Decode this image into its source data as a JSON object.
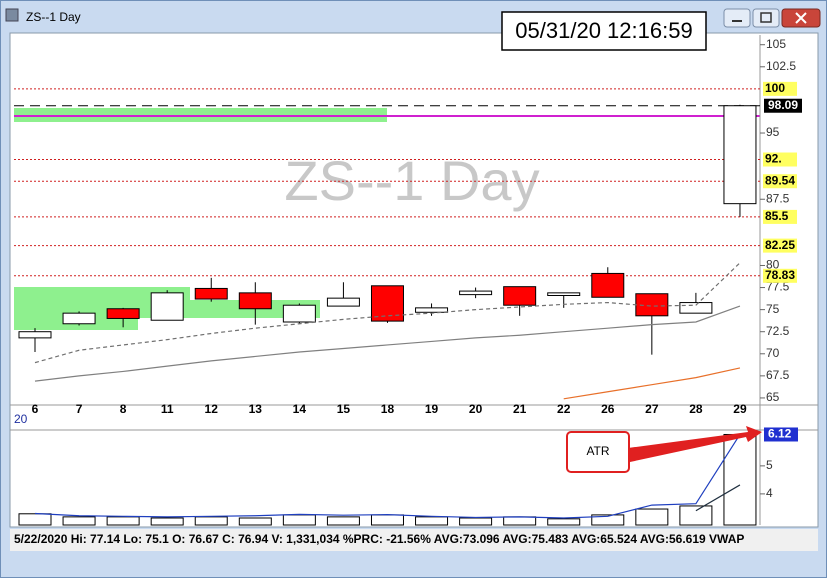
{
  "window": {
    "title": "ZS--1 Day",
    "clock": "05/31/20 12:16:59"
  },
  "chart_data": [
    {
      "type": "candlestick",
      "watermark": "ZS--1 Day",
      "categories": [
        "6",
        "7",
        "8",
        "11",
        "12",
        "13",
        "14",
        "15",
        "18",
        "19",
        "20",
        "21",
        "22",
        "26",
        "27",
        "28",
        "29"
      ],
      "period_label": "20",
      "open": [
        71.8,
        73.4,
        75.1,
        73.8,
        77.4,
        76.9,
        73.6,
        75.4,
        77.7,
        74.7,
        76.7,
        77.6,
        76.6,
        79.1,
        76.8,
        74.6,
        87.0
      ],
      "high": [
        72.9,
        74.8,
        75.2,
        77.2,
        78.6,
        78.1,
        75.7,
        78.1,
        77.7,
        75.7,
        77.5,
        77.6,
        76.9,
        79.8,
        76.8,
        76.9,
        98.2
      ],
      "low": [
        70.2,
        73.2,
        73.0,
        73.8,
        75.9,
        73.3,
        73.4,
        75.4,
        73.5,
        74.3,
        76.3,
        74.3,
        75.2,
        76.4,
        69.9,
        74.6,
        85.5
      ],
      "close": [
        72.5,
        74.6,
        74.0,
        76.9,
        76.2,
        75.1,
        75.5,
        76.3,
        73.7,
        75.2,
        77.1,
        75.5,
        76.9,
        76.4,
        74.3,
        75.8,
        98.09
      ],
      "up_color": "#ffffff",
      "down_color": "#ff0000",
      "series": [
        {
          "color": "#707070",
          "dashed": true,
          "values": [
            69.0,
            70.4,
            71.0,
            71.6,
            72.3,
            72.9,
            73.4,
            73.9,
            74.3,
            74.6,
            75.0,
            75.3,
            75.6,
            75.8,
            75.4,
            75.5,
            80.3
          ]
        },
        {
          "color": "#808080",
          "dashed": false,
          "values": [
            66.9,
            67.5,
            68.0,
            68.6,
            69.2,
            69.7,
            70.2,
            70.6,
            71.0,
            71.4,
            71.8,
            72.1,
            72.5,
            72.9,
            73.3,
            73.6,
            75.4
          ]
        },
        {
          "color": "#e8702a",
          "dashed": false,
          "values": [
            null,
            null,
            null,
            null,
            null,
            null,
            null,
            null,
            null,
            null,
            null,
            null,
            64.9,
            65.7,
            66.5,
            67.3,
            68.4
          ]
        }
      ],
      "ylim": [
        64.2,
        106.1
      ],
      "yticks": [
        105,
        102.5,
        95,
        87.5,
        80,
        77.5,
        75,
        72.5,
        70,
        67.5,
        65
      ],
      "levels": [
        100,
        {
          "value": 92,
          "label": "92."
        },
        89.54,
        85.5,
        82.25,
        78.83
      ],
      "last_price": 98.09
    },
    {
      "type": "bar",
      "annotation": "ATR",
      "values": [
        3.29,
        3.18,
        3.18,
        3.14,
        3.18,
        3.14,
        3.25,
        3.18,
        3.25,
        3.18,
        3.14,
        3.18,
        3.11,
        3.25,
        3.46,
        3.57,
        6.12
      ],
      "color": "#ffffff",
      "series": [
        {
          "color": "#1f3fbf",
          "values": [
            3.3,
            3.22,
            3.2,
            3.18,
            3.2,
            3.22,
            3.27,
            3.24,
            3.26,
            3.2,
            3.16,
            3.18,
            3.14,
            3.2,
            3.6,
            3.65,
            6.12
          ]
        },
        {
          "color": "#203040",
          "values": [
            null,
            null,
            null,
            null,
            null,
            null,
            null,
            null,
            null,
            null,
            null,
            null,
            null,
            null,
            null,
            3.4,
            4.32
          ]
        }
      ],
      "ylim": [
        2.89,
        6.28
      ],
      "yticks": [
        5,
        4
      ],
      "last_value": 6.12
    }
  ],
  "status_bar": "5/22/2020  Hi: 77.14  Lo: 75.1  O: 76.67  C: 76.94  V: 1,331,034 %PRC: -21.56% AVG:73.096 AVG:75.483 AVG:65.524 AVG:56.619 VWAP"
}
